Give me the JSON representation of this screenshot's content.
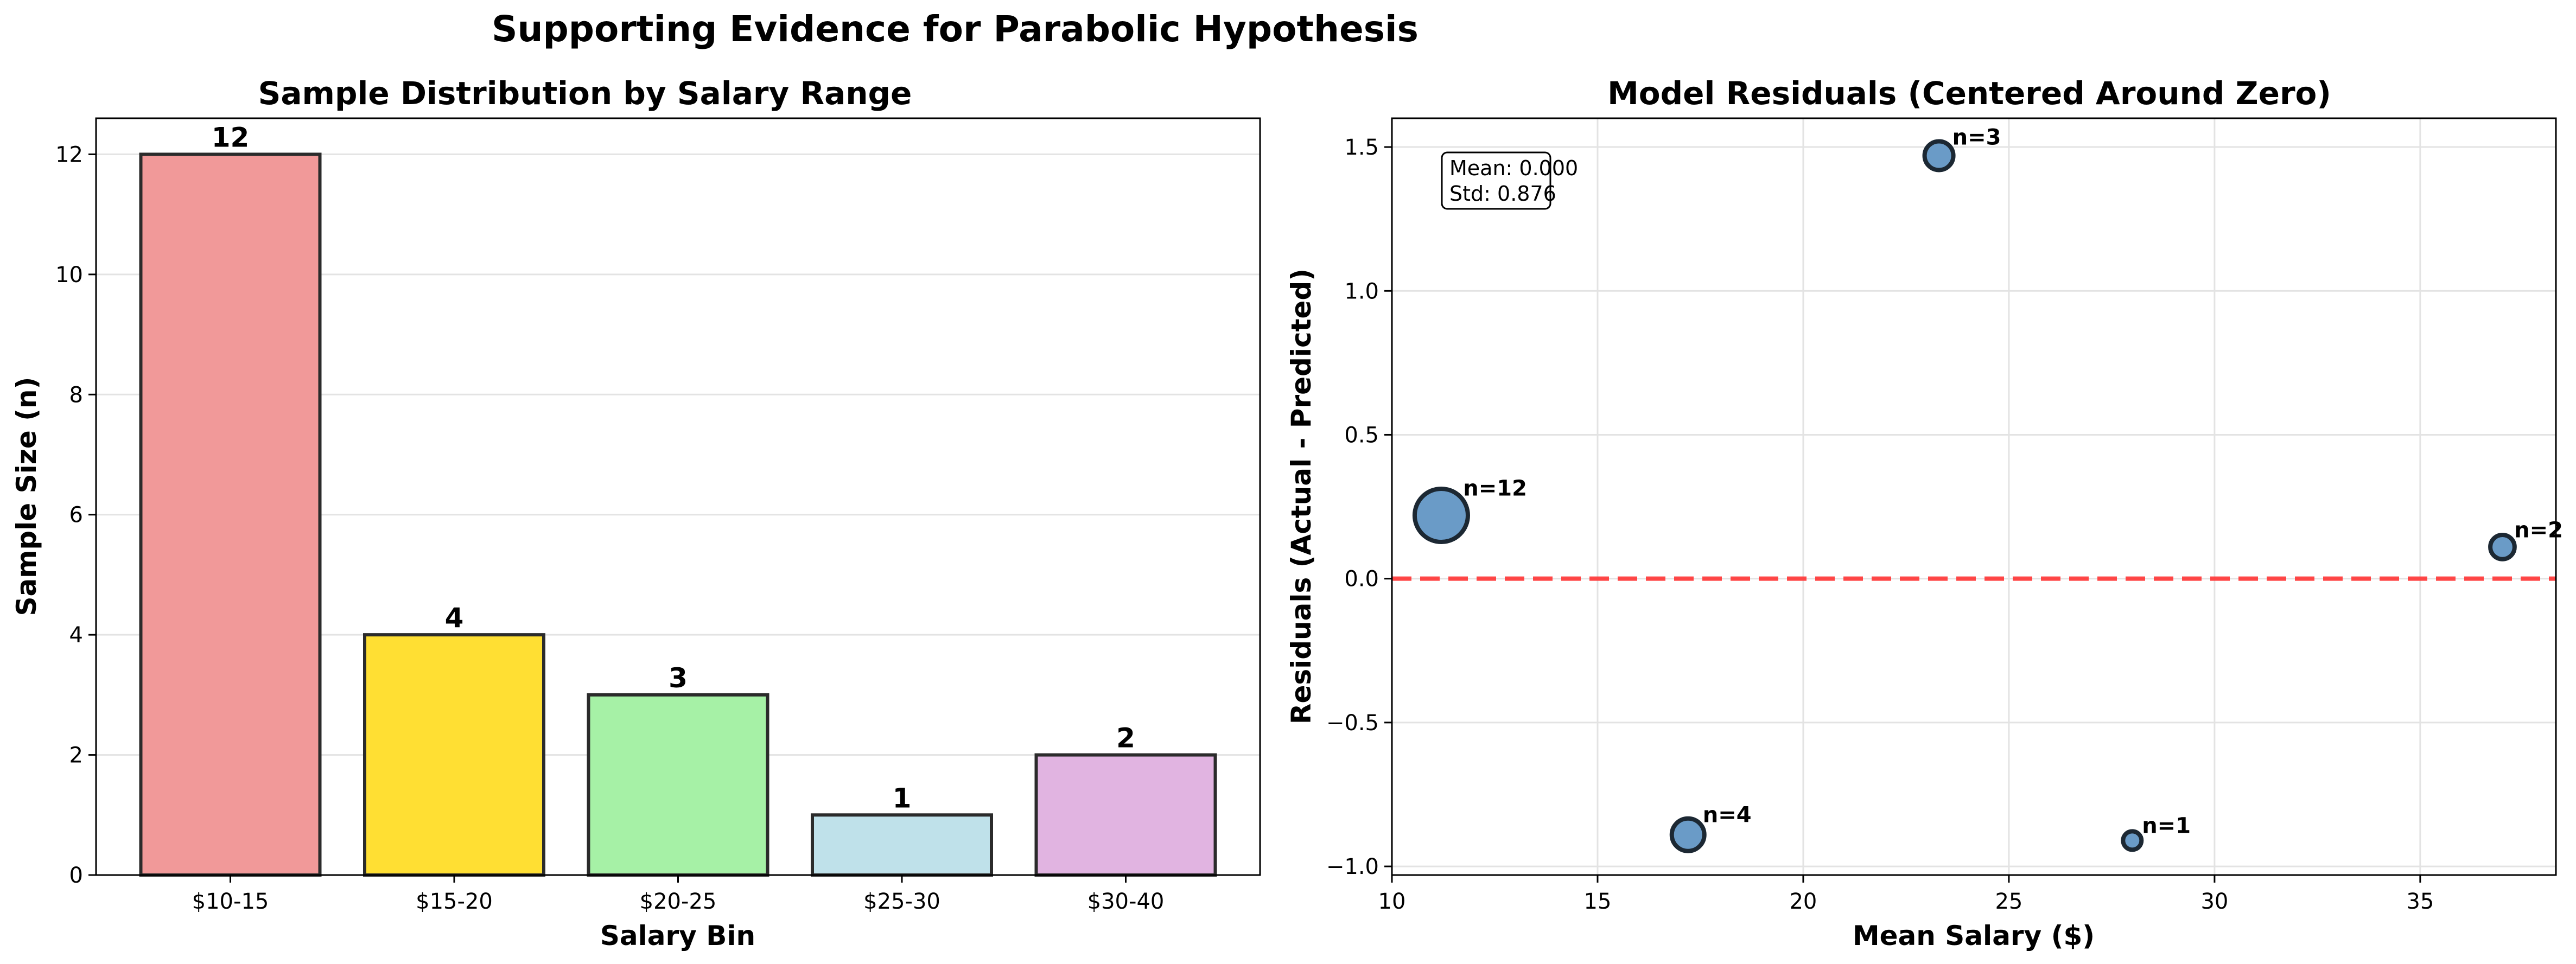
{
  "figure": {
    "title": "Supporting Evidence for Parabolic Hypothesis"
  },
  "chart_data": [
    {
      "type": "bar",
      "title": "Sample Distribution by Salary Range",
      "xlabel": "Salary Bin",
      "ylabel": "Sample Size (n)",
      "categories": [
        "$10-15",
        "$15-20",
        "$20-25",
        "$25-30",
        "$30-40"
      ],
      "values": [
        12,
        4,
        3,
        1,
        2
      ],
      "data_labels": [
        "12",
        "4",
        "3",
        "1",
        "2"
      ],
      "colors": [
        "#F19999",
        "#FFDF33",
        "#A6F1A6",
        "#BFE1EA",
        "#E1B4E1"
      ],
      "ylim": [
        0,
        12.6
      ],
      "yticks": [
        0,
        2,
        4,
        6,
        8,
        10,
        12
      ],
      "ytick_labels": [
        "0",
        "2",
        "4",
        "6",
        "8",
        "10",
        "12"
      ],
      "grid": "y",
      "edge_color": "#2b2b2b"
    },
    {
      "type": "scatter",
      "title": "Model Residuals (Centered Around Zero)",
      "xlabel": "Mean Salary ($)",
      "ylabel": "Residuals (Actual - Predicted)",
      "points": [
        {
          "x": 11.2,
          "y": 0.22,
          "n": 12,
          "label": "n=12"
        },
        {
          "x": 17.2,
          "y": -0.89,
          "n": 4,
          "label": "n=4"
        },
        {
          "x": 23.3,
          "y": 1.47,
          "n": 3,
          "label": "n=3"
        },
        {
          "x": 28.0,
          "y": -0.91,
          "n": 1,
          "label": "n=1"
        },
        {
          "x": 37.0,
          "y": 0.11,
          "n": 2,
          "label": "n=2"
        }
      ],
      "xlim": [
        10,
        38.3
      ],
      "ylim": [
        -1.03,
        1.6
      ],
      "xticks": [
        10,
        15,
        20,
        25,
        30,
        35
      ],
      "xtick_labels": [
        "10",
        "15",
        "20",
        "25",
        "30",
        "35"
      ],
      "yticks": [
        -1.0,
        -0.5,
        0.0,
        0.5,
        1.0,
        1.5
      ],
      "ytick_labels": [
        "−1.0",
        "−0.5",
        "0.0",
        "0.5",
        "1.0",
        "1.5"
      ],
      "reference_line": {
        "y": 0,
        "color": "#FF3333",
        "style": "dashed"
      },
      "stats_box": {
        "mean": "Mean: 0.000",
        "std": "Std: 0.876"
      },
      "marker_color": "#6A9BC7",
      "grid": "both"
    }
  ]
}
